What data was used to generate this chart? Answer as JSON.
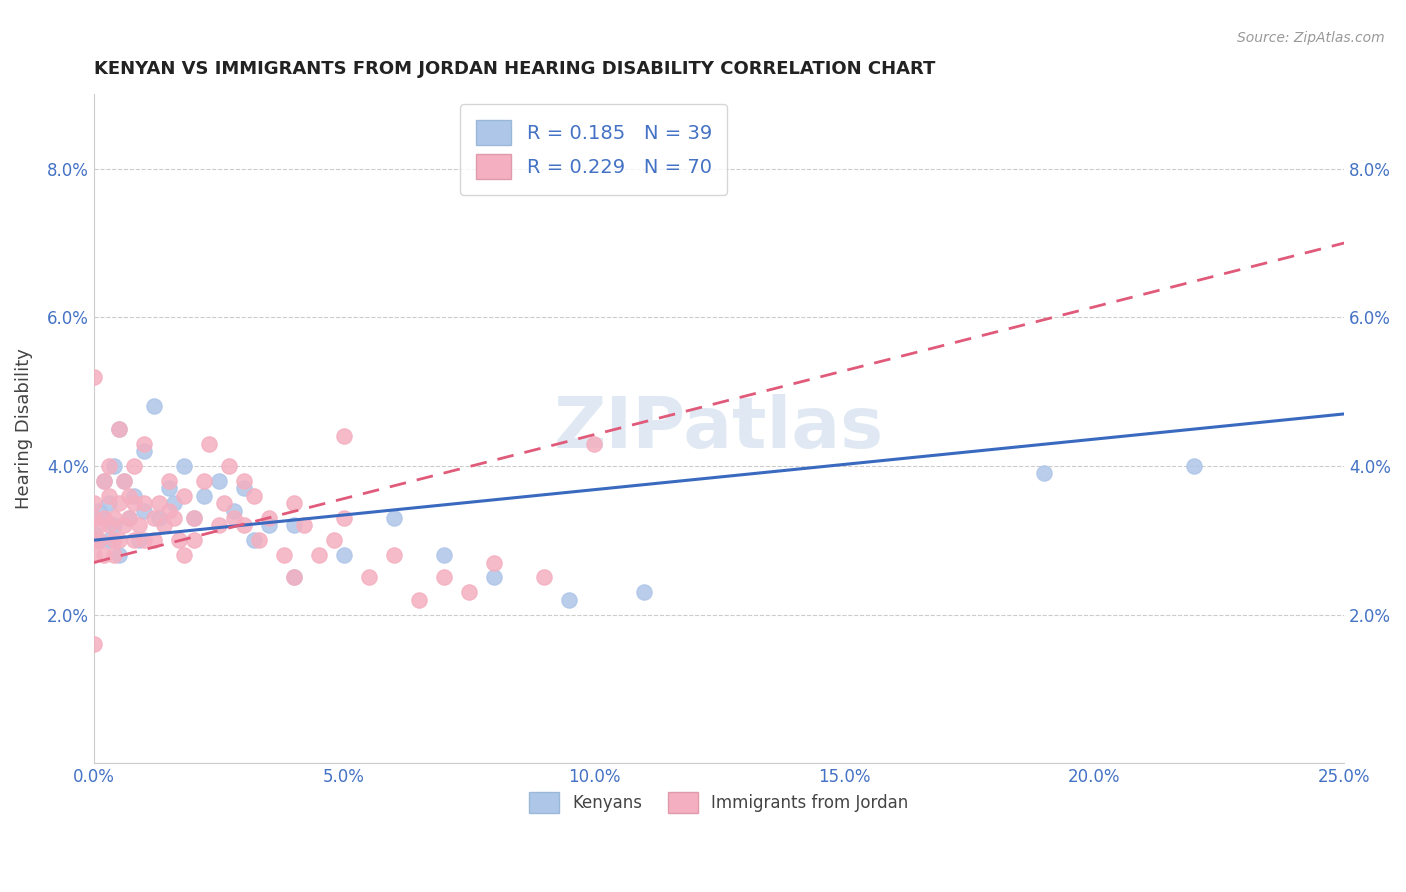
{
  "title": "KENYAN VS IMMIGRANTS FROM JORDAN HEARING DISABILITY CORRELATION CHART",
  "source": "Source: ZipAtlas.com",
  "ylabel": "Hearing Disability",
  "xlim": [
    0.0,
    0.25
  ],
  "ylim": [
    0.0,
    0.09
  ],
  "xticks": [
    0.0,
    0.05,
    0.1,
    0.15,
    0.2,
    0.25
  ],
  "yticks": [
    0.0,
    0.02,
    0.04,
    0.06,
    0.08
  ],
  "xtick_labels": [
    "0.0%",
    "5.0%",
    "10.0%",
    "15.0%",
    "20.0%",
    "25.0%"
  ],
  "ytick_labels_left": [
    "",
    "2.0%",
    "4.0%",
    "6.0%",
    "8.0%"
  ],
  "ytick_labels_right": [
    "",
    "2.0%",
    "4.0%",
    "6.0%",
    "8.0%"
  ],
  "R_kenyan": 0.185,
  "N_kenyan": 39,
  "R_jordan": 0.229,
  "N_jordan": 70,
  "color_kenyan": "#aec6e8",
  "color_jordan": "#f4afc0",
  "line_color_kenyan": "#3a6abf",
  "line_color_jordan": "#e05a7a",
  "background_color": "#ffffff",
  "watermark": "ZIPatlas",
  "kenyan_scatter": [
    [
      0.0,
      0.031
    ],
    [
      0.001,
      0.034
    ],
    [
      0.001,
      0.03
    ],
    [
      0.002,
      0.033
    ],
    [
      0.002,
      0.038
    ],
    [
      0.003,
      0.03
    ],
    [
      0.003,
      0.035
    ],
    [
      0.004,
      0.032
    ],
    [
      0.004,
      0.04
    ],
    [
      0.005,
      0.028
    ],
    [
      0.005,
      0.045
    ],
    [
      0.006,
      0.038
    ],
    [
      0.007,
      0.033
    ],
    [
      0.008,
      0.036
    ],
    [
      0.009,
      0.03
    ],
    [
      0.01,
      0.042
    ],
    [
      0.01,
      0.034
    ],
    [
      0.012,
      0.048
    ],
    [
      0.013,
      0.033
    ],
    [
      0.015,
      0.037
    ],
    [
      0.016,
      0.035
    ],
    [
      0.018,
      0.04
    ],
    [
      0.02,
      0.033
    ],
    [
      0.022,
      0.036
    ],
    [
      0.025,
      0.038
    ],
    [
      0.028,
      0.034
    ],
    [
      0.03,
      0.037
    ],
    [
      0.032,
      0.03
    ],
    [
      0.035,
      0.032
    ],
    [
      0.04,
      0.025
    ],
    [
      0.04,
      0.032
    ],
    [
      0.05,
      0.028
    ],
    [
      0.06,
      0.033
    ],
    [
      0.07,
      0.028
    ],
    [
      0.08,
      0.025
    ],
    [
      0.095,
      0.022
    ],
    [
      0.11,
      0.023
    ],
    [
      0.19,
      0.039
    ],
    [
      0.22,
      0.04
    ]
  ],
  "jordan_scatter": [
    [
      0.0,
      0.03
    ],
    [
      0.0,
      0.033
    ],
    [
      0.0,
      0.028
    ],
    [
      0.0,
      0.052
    ],
    [
      0.0,
      0.035
    ],
    [
      0.001,
      0.03
    ],
    [
      0.001,
      0.032
    ],
    [
      0.002,
      0.033
    ],
    [
      0.002,
      0.028
    ],
    [
      0.002,
      0.038
    ],
    [
      0.003,
      0.032
    ],
    [
      0.003,
      0.036
    ],
    [
      0.003,
      0.04
    ],
    [
      0.004,
      0.03
    ],
    [
      0.004,
      0.033
    ],
    [
      0.004,
      0.028
    ],
    [
      0.005,
      0.035
    ],
    [
      0.005,
      0.03
    ],
    [
      0.005,
      0.045
    ],
    [
      0.006,
      0.032
    ],
    [
      0.006,
      0.038
    ],
    [
      0.007,
      0.033
    ],
    [
      0.007,
      0.036
    ],
    [
      0.008,
      0.03
    ],
    [
      0.008,
      0.035
    ],
    [
      0.008,
      0.04
    ],
    [
      0.009,
      0.032
    ],
    [
      0.01,
      0.035
    ],
    [
      0.01,
      0.03
    ],
    [
      0.01,
      0.043
    ],
    [
      0.012,
      0.033
    ],
    [
      0.012,
      0.03
    ],
    [
      0.013,
      0.035
    ],
    [
      0.014,
      0.032
    ],
    [
      0.015,
      0.038
    ],
    [
      0.015,
      0.034
    ],
    [
      0.016,
      0.033
    ],
    [
      0.017,
      0.03
    ],
    [
      0.018,
      0.036
    ],
    [
      0.018,
      0.028
    ],
    [
      0.02,
      0.033
    ],
    [
      0.02,
      0.03
    ],
    [
      0.022,
      0.038
    ],
    [
      0.023,
      0.043
    ],
    [
      0.025,
      0.032
    ],
    [
      0.026,
      0.035
    ],
    [
      0.027,
      0.04
    ],
    [
      0.028,
      0.033
    ],
    [
      0.03,
      0.038
    ],
    [
      0.03,
      0.032
    ],
    [
      0.032,
      0.036
    ],
    [
      0.033,
      0.03
    ],
    [
      0.035,
      0.033
    ],
    [
      0.038,
      0.028
    ],
    [
      0.04,
      0.035
    ],
    [
      0.04,
      0.025
    ],
    [
      0.042,
      0.032
    ],
    [
      0.045,
      0.028
    ],
    [
      0.048,
      0.03
    ],
    [
      0.05,
      0.044
    ],
    [
      0.055,
      0.025
    ],
    [
      0.06,
      0.028
    ],
    [
      0.065,
      0.022
    ],
    [
      0.07,
      0.025
    ],
    [
      0.075,
      0.023
    ],
    [
      0.08,
      0.027
    ],
    [
      0.09,
      0.025
    ],
    [
      0.1,
      0.043
    ],
    [
      0.0,
      0.016
    ],
    [
      0.05,
      0.033
    ]
  ]
}
